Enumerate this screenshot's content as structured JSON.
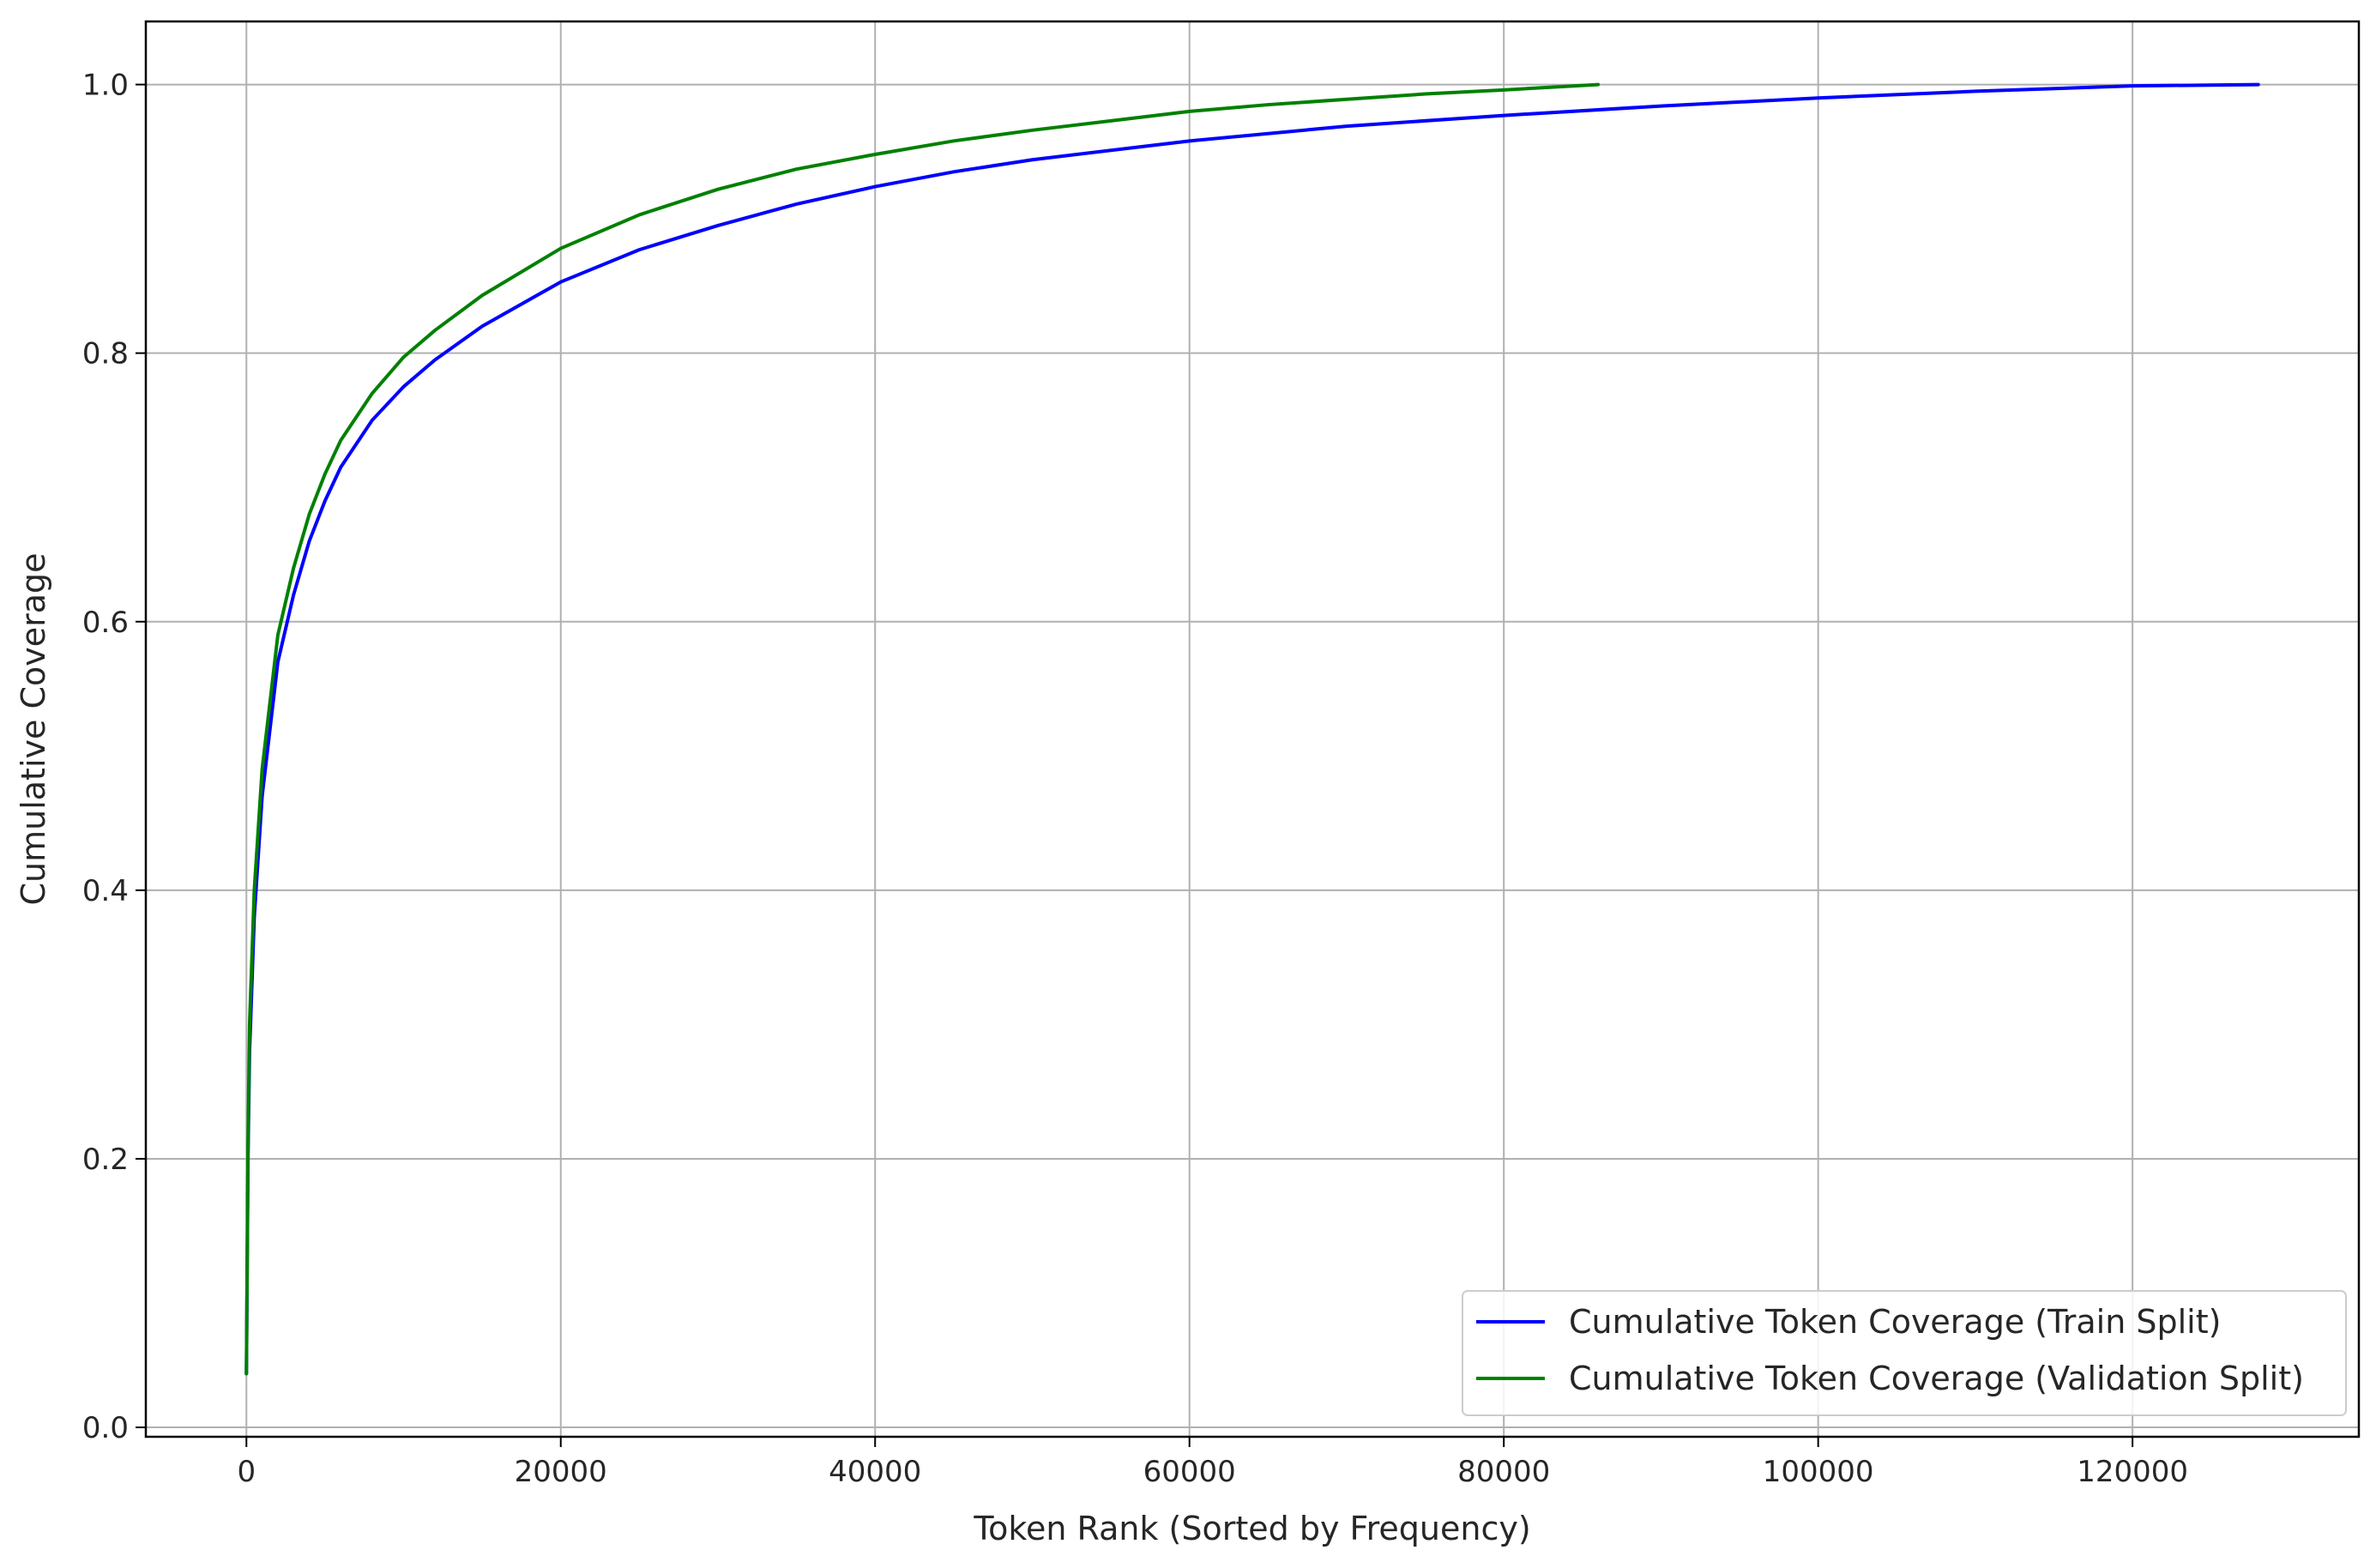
{
  "chart_data": {
    "type": "line",
    "title": "",
    "xlabel": "Token Rank (Sorted by Frequency)",
    "ylabel": "Cumulative Coverage",
    "xlim": [
      -6400,
      134400
    ],
    "ylim": [
      -0.007,
      1.047
    ],
    "xticks": [
      0,
      20000,
      40000,
      60000,
      80000,
      100000,
      120000
    ],
    "yticks": [
      0.0,
      0.2,
      0.4,
      0.6,
      0.8,
      1.0
    ],
    "grid": true,
    "legend_position": "lower-right",
    "series": [
      {
        "name": "Cumulative Token Coverage (Train Split)",
        "color": "#0000ff",
        "x": [
          0,
          100,
          200,
          500,
          1000,
          2000,
          3000,
          4000,
          5000,
          6000,
          8000,
          10000,
          12000,
          15000,
          20000,
          25000,
          30000,
          35000,
          40000,
          45000,
          50000,
          60000,
          70000,
          80000,
          90000,
          100000,
          110000,
          120000,
          128000
        ],
        "y": [
          0.04,
          0.2,
          0.28,
          0.38,
          0.47,
          0.57,
          0.62,
          0.66,
          0.69,
          0.715,
          0.75,
          0.775,
          0.795,
          0.82,
          0.853,
          0.877,
          0.895,
          0.911,
          0.924,
          0.935,
          0.944,
          0.958,
          0.969,
          0.977,
          0.984,
          0.99,
          0.995,
          0.999,
          1.0
        ]
      },
      {
        "name": "Cumulative Token Coverage (Validation Split)",
        "color": "#008000",
        "x": [
          0,
          100,
          200,
          500,
          1000,
          2000,
          3000,
          4000,
          5000,
          6000,
          8000,
          10000,
          12000,
          15000,
          20000,
          25000,
          30000,
          35000,
          40000,
          45000,
          50000,
          55000,
          60000,
          65000,
          70000,
          75000,
          80000,
          86000
        ],
        "y": [
          0.04,
          0.21,
          0.3,
          0.4,
          0.49,
          0.59,
          0.64,
          0.68,
          0.71,
          0.735,
          0.77,
          0.797,
          0.817,
          0.843,
          0.878,
          0.903,
          0.922,
          0.937,
          0.948,
          0.958,
          0.966,
          0.973,
          0.98,
          0.985,
          0.989,
          0.993,
          0.996,
          1.0
        ]
      }
    ]
  }
}
